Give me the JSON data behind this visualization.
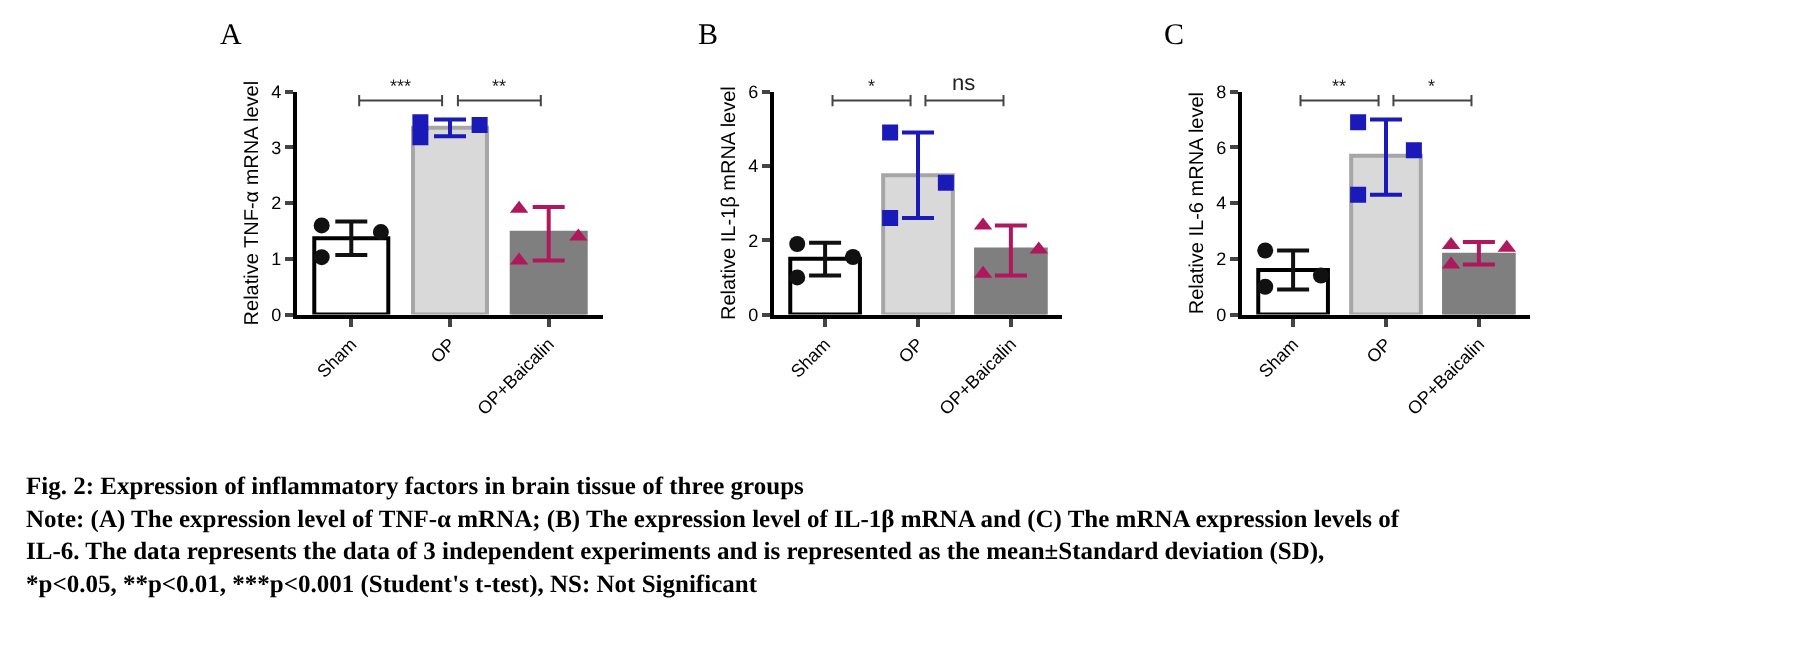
{
  "chart_data": [
    {
      "type": "bar",
      "title": "A",
      "ylabel": "Relative TNF-α mRNA level",
      "categories": [
        "Sham",
        "OP",
        "OP+Baicalin"
      ],
      "ylim": [
        0,
        4
      ],
      "yticks": [
        0,
        1,
        2,
        3,
        4
      ],
      "series": [
        {
          "type": "bar",
          "values": [
            1.37,
            3.35,
            1.47
          ],
          "colors": [
            "#ffffff",
            "#d9d9d9",
            "#7f7f7f"
          ],
          "errors": [
            [
              1.07,
              1.67
            ],
            [
              3.2,
              3.5
            ],
            [
              0.97,
              1.93
            ]
          ]
        },
        {
          "type": "scatter",
          "x": [
            "Sham",
            "Sham",
            "Sham"
          ],
          "values": [
            1.6,
            1.48,
            1.03
          ],
          "color": "#111111",
          "marker": "circle"
        },
        {
          "type": "scatter",
          "x": [
            "OP",
            "OP",
            "OP"
          ],
          "values": [
            3.45,
            3.4,
            3.18
          ],
          "color": "#1a1ab8",
          "marker": "square"
        },
        {
          "type": "scatter",
          "x": [
            "OP+Baicalin",
            "OP+Baicalin",
            "OP+Baicalin"
          ],
          "values": [
            1.9,
            1.4,
            0.97
          ],
          "color": "#b0185e",
          "marker": "triangle"
        }
      ],
      "annotations": [
        "***",
        "**"
      ]
    },
    {
      "type": "bar",
      "title": "B",
      "ylabel": "Relative IL-1β mRNA level",
      "categories": [
        "Sham",
        "OP",
        "OP+Baicalin"
      ],
      "ylim": [
        0,
        6
      ],
      "yticks": [
        0,
        2,
        4,
        6
      ],
      "series": [
        {
          "type": "bar",
          "values": [
            1.5,
            3.75,
            1.75
          ],
          "colors": [
            "#ffffff",
            "#d9d9d9",
            "#7f7f7f"
          ],
          "errors": [
            [
              1.05,
              1.93
            ],
            [
              2.6,
              4.9
            ],
            [
              1.05,
              2.4
            ]
          ]
        },
        {
          "type": "scatter",
          "x": [
            "Sham",
            "Sham",
            "Sham"
          ],
          "values": [
            1.9,
            1.55,
            1.0
          ],
          "color": "#111111",
          "marker": "circle"
        },
        {
          "type": "scatter",
          "x": [
            "OP",
            "OP",
            "OP"
          ],
          "values": [
            4.9,
            3.55,
            2.6
          ],
          "color": "#1a1ab8",
          "marker": "square"
        },
        {
          "type": "scatter",
          "x": [
            "OP+Baicalin",
            "OP+Baicalin",
            "OP+Baicalin"
          ],
          "values": [
            2.4,
            1.75,
            1.1
          ],
          "color": "#b0185e",
          "marker": "triangle"
        }
      ],
      "annotations": [
        "*",
        "ns"
      ]
    },
    {
      "type": "bar",
      "title": "C",
      "ylabel": "Relative IL-6 mRNA level",
      "categories": [
        "Sham",
        "OP",
        "OP+Baicalin"
      ],
      "ylim": [
        0,
        8
      ],
      "yticks": [
        0,
        2,
        4,
        6,
        8
      ],
      "series": [
        {
          "type": "bar",
          "values": [
            1.6,
            5.7,
            2.15
          ],
          "colors": [
            "#ffffff",
            "#d9d9d9",
            "#7f7f7f"
          ],
          "errors": [
            [
              0.9,
              2.3
            ],
            [
              4.3,
              7.0
            ],
            [
              1.8,
              2.6
            ]
          ]
        },
        {
          "type": "scatter",
          "x": [
            "Sham",
            "Sham",
            "Sham"
          ],
          "values": [
            2.3,
            1.4,
            1.0
          ],
          "color": "#111111",
          "marker": "circle"
        },
        {
          "type": "scatter",
          "x": [
            "OP",
            "OP",
            "OP"
          ],
          "values": [
            6.9,
            5.9,
            4.3
          ],
          "color": "#1a1ab8",
          "marker": "square"
        },
        {
          "type": "scatter",
          "x": [
            "OP+Baicalin",
            "OP+Baicalin",
            "OP+Baicalin"
          ],
          "values": [
            2.5,
            2.4,
            1.8
          ],
          "color": "#b0185e",
          "marker": "triangle"
        }
      ],
      "annotations": [
        "**",
        "*"
      ]
    },
    {
      "type": "other",
      "title": "Fig. 2: Expression of inflammatory factors in brain tissue of three groups",
      "annotations": [
        "Note: (A) The expression level of TNF-α mRNA; (B) The expression level of IL-1β mRNA and (C) The mRNA expression levels of IL-6. The data represents the data of 3 independent experiments and is represented as the mean±Standard deviation (SD), *p<0.05, **p<0.01, ***p<0.001 (Student's t-test), NS: Not Significant"
      ]
    }
  ]
}
